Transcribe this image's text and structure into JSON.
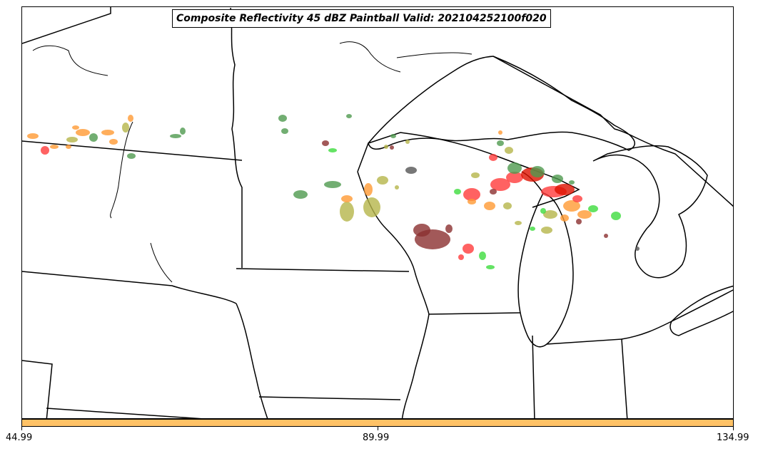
{
  "title": "Composite Reflectivity 45 dBZ Paintball Valid: 202104252100f020",
  "colorbar": {
    "color": "#ffc266",
    "ticks": [
      "44.99",
      "89.99",
      "134.99"
    ]
  },
  "palette": {
    "dark_green": "#4f9a4f",
    "light_green": "#3ddc3d",
    "orange": "#ff9a33",
    "red": "#ff3b3b",
    "dark_red": "#8b2f2f",
    "olive": "#b5b54a",
    "gray": "#555555",
    "bright_red": "#dd1100"
  },
  "map": {
    "region": "Upper Midwest / Great Lakes",
    "features": [
      "state boundaries",
      "Great Lakes coastlines",
      "Canada border"
    ]
  }
}
